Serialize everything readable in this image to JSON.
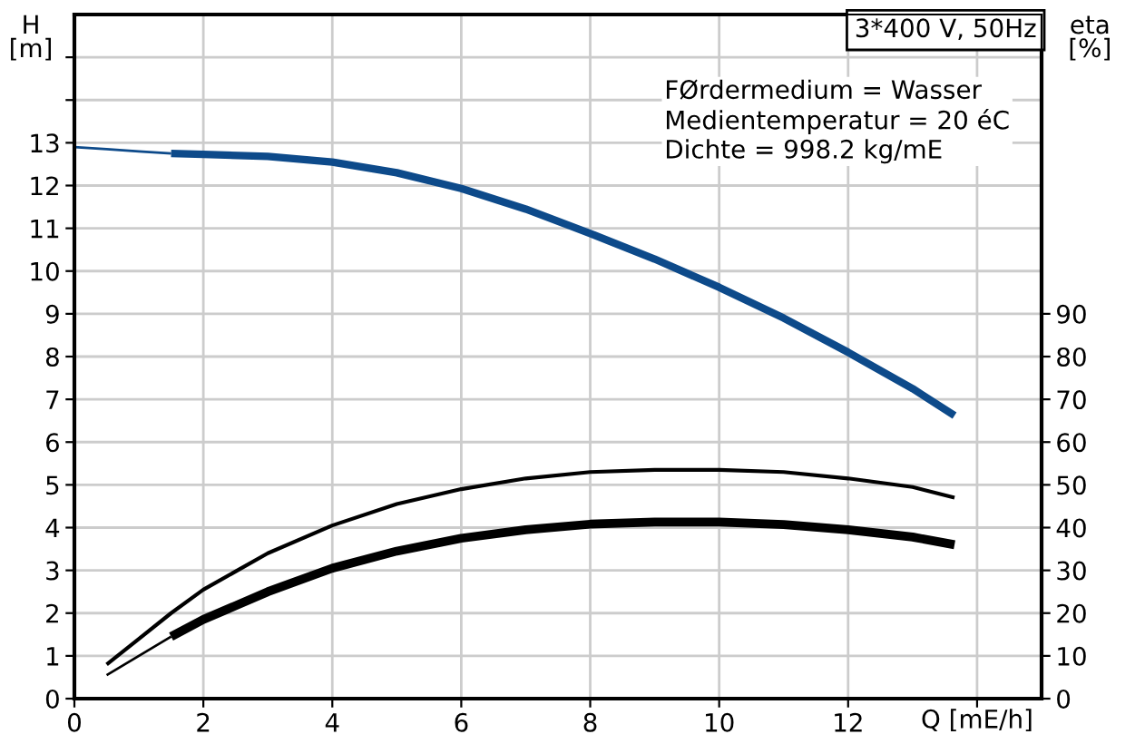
{
  "chart_data": {
    "type": "line",
    "xlabel": "Q [mE/h]",
    "ylabel": "H\n[m]",
    "y2label": "eta\n[%]",
    "xlim": [
      0,
      15
    ],
    "xticks": [
      0,
      2,
      4,
      6,
      8,
      10,
      12,
      {
        "value": 14,
        "label": null
      }
    ],
    "ylim": [
      0,
      16
    ],
    "yticks": [
      0,
      1,
      2,
      3,
      4,
      5,
      6,
      7,
      8,
      9,
      10,
      11,
      12,
      13,
      {
        "value": 14,
        "label": null
      },
      {
        "value": 15,
        "label": null
      }
    ],
    "y2lim": [
      0,
      160
    ],
    "y2ticks": [
      0,
      10,
      20,
      30,
      40,
      50,
      60,
      70,
      80,
      90
    ],
    "grid": true,
    "marker": "none",
    "line_style": "solid",
    "series": [
      {
        "color": "#0d4a8a",
        "x": [
          0,
          0.5,
          1,
          1.5
        ],
        "values": [
          12.9,
          12.85,
          12.8,
          12.75
        ]
      },
      {
        "color": "#0d4a8a",
        "x": [
          1.5,
          2,
          3,
          4,
          5,
          6,
          7,
          8,
          9,
          10,
          11,
          12,
          13,
          13.65
        ],
        "values": [
          12.75,
          12.73,
          12.68,
          12.55,
          12.3,
          11.93,
          11.45,
          10.88,
          10.28,
          9.62,
          8.9,
          8.1,
          7.25,
          6.62
        ]
      },
      {
        "color": "#000000",
        "axis": "y2",
        "x": [
          0.5,
          1,
          1.5,
          2,
          3,
          4,
          5,
          6,
          7,
          8,
          9,
          10,
          11,
          12,
          13,
          13.65
        ],
        "values": [
          8,
          14,
          20,
          25.5,
          34,
          40.5,
          45.5,
          49,
          51.5,
          53,
          53.5,
          53.5,
          53,
          51.5,
          49.5,
          47
        ]
      },
      {
        "color": "#000000",
        "axis": "y2",
        "x": [
          0.5,
          1,
          1.5
        ],
        "values": [
          5.5,
          10,
          14.5
        ]
      },
      {
        "color": "#000000",
        "axis": "y2",
        "x": [
          1.5,
          2,
          3,
          4,
          5,
          6,
          7,
          8,
          9,
          10,
          11,
          12,
          13,
          13.65
        ],
        "values": [
          14.5,
          18.5,
          25,
          30.5,
          34.5,
          37.5,
          39.5,
          40.8,
          41.3,
          41.3,
          40.7,
          39.5,
          37.8,
          36
        ]
      }
    ],
    "annotations": [
      "3*400 V, 50Hz",
      "FØrdermedium = Wasser\nMedientemperatur = 20 éC\nDichte = 998.2 kg/mE"
    ]
  }
}
